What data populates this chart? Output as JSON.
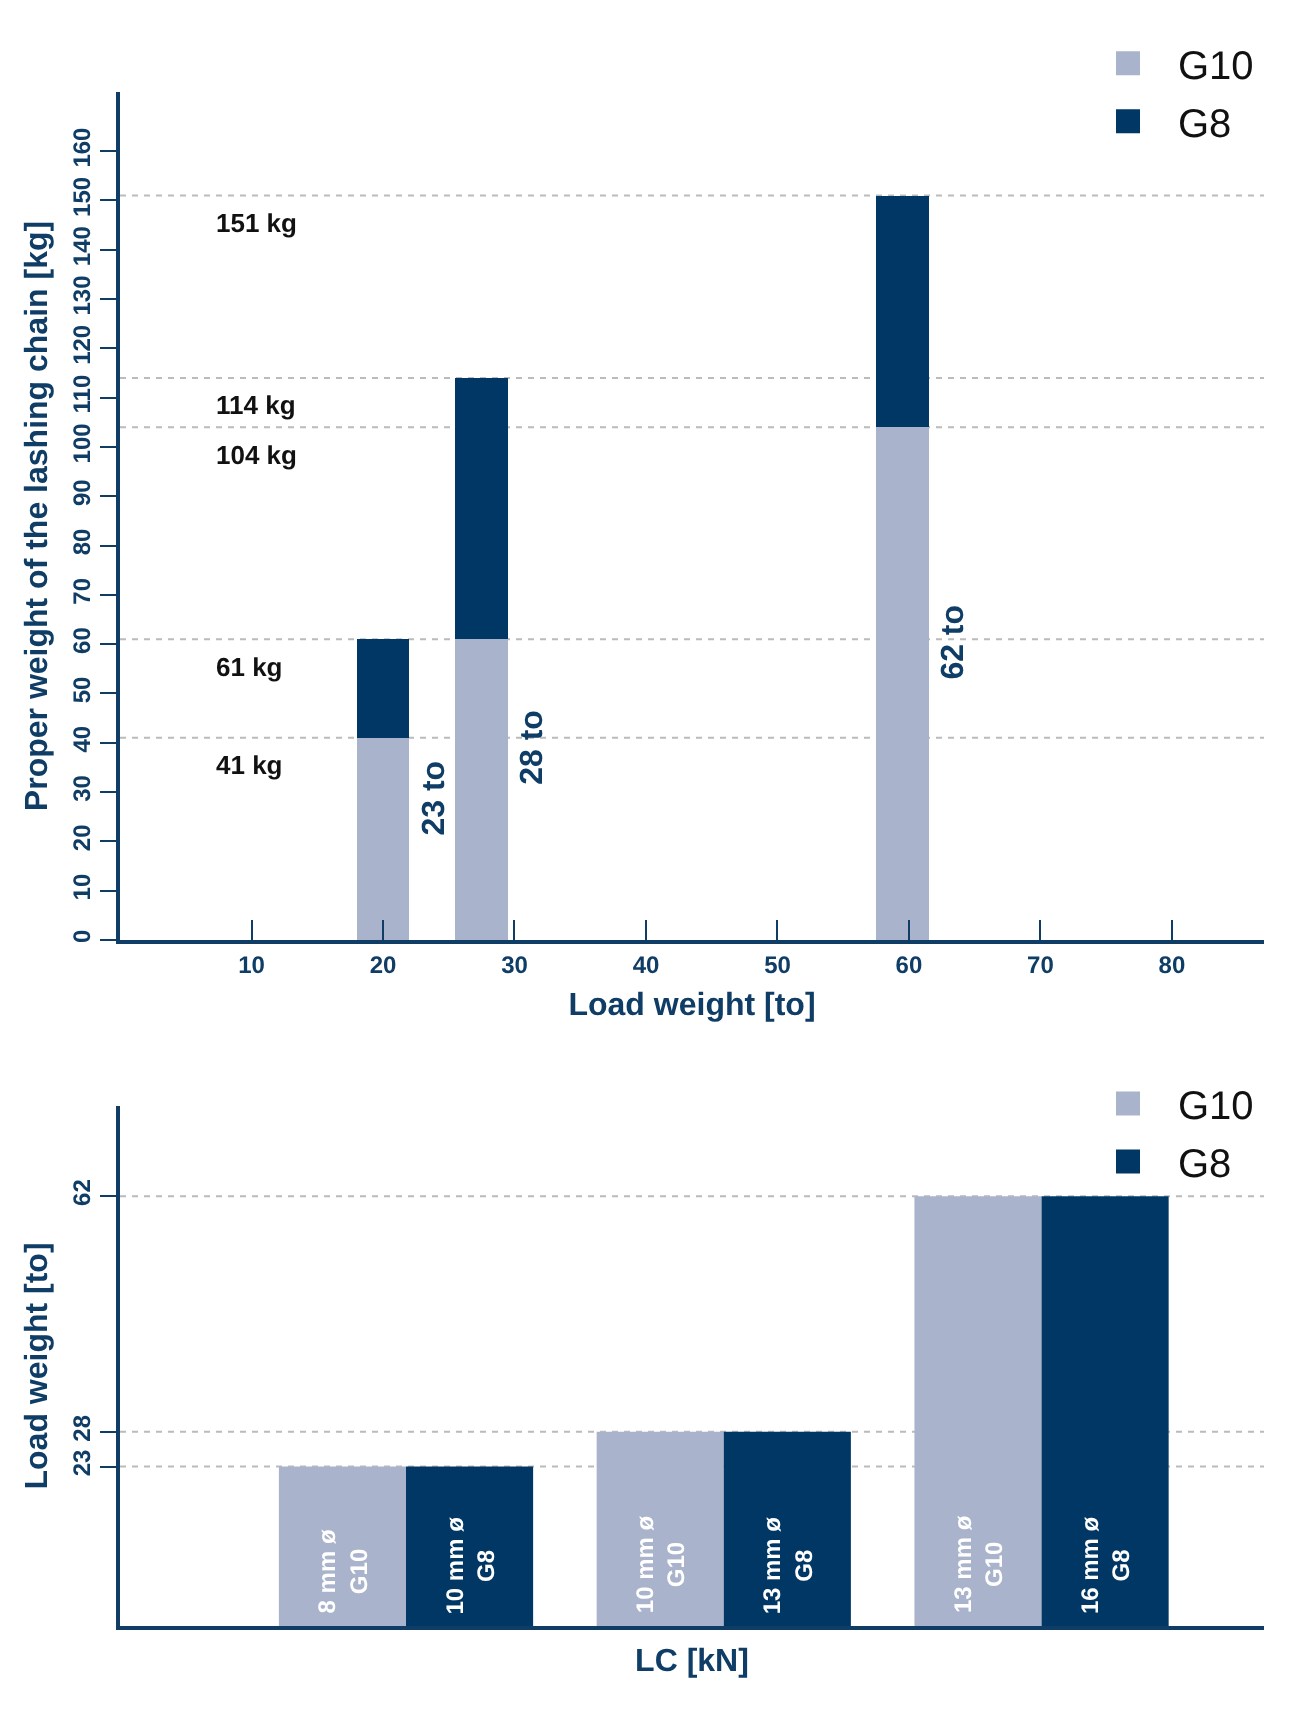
{
  "chart_data": [
    {
      "type": "bar",
      "stacked": true,
      "xlabel": "Load weight [to]",
      "ylabel": "Proper weight of the lashing chain [kg]",
      "x": [
        20,
        27.5,
        59.5
      ],
      "series": [
        {
          "name": "G10",
          "color": "#a9b3cb",
          "values": [
            41,
            61,
            104
          ]
        },
        {
          "name": "G8",
          "color": "#003764",
          "values": [
            20,
            53,
            47
          ]
        }
      ],
      "xlim": [
        0,
        87
      ],
      "xticks": [
        10,
        20,
        30,
        40,
        50,
        60,
        70,
        80
      ],
      "ylim": [
        0,
        172
      ],
      "yticks": [
        0,
        10,
        20,
        30,
        40,
        50,
        60,
        70,
        80,
        90,
        100,
        110,
        120,
        130,
        140,
        150,
        160
      ],
      "ref_lines": [
        {
          "axis": "y",
          "value": 41,
          "label": "41 kg",
          "line_style": "dotted",
          "color": "#bbbbbb"
        },
        {
          "axis": "y",
          "value": 61,
          "label": "61 kg",
          "line_style": "dotted",
          "color": "#bbbbbb"
        },
        {
          "axis": "y",
          "value": 104,
          "label": "104 kg",
          "line_style": "dotted",
          "color": "#bbbbbb"
        },
        {
          "axis": "y",
          "value": 114,
          "label": "114 kg",
          "line_style": "dotted",
          "color": "#bbbbbb"
        },
        {
          "axis": "y",
          "value": 151,
          "label": "151 kg",
          "line_style": "dotted",
          "color": "#bbbbbb"
        }
      ],
      "annotations": [
        "23 to",
        "28 to",
        "62 to"
      ],
      "grid": false,
      "legend": "top right"
    },
    {
      "type": "bar",
      "xlabel": "LC [kN]",
      "ylabel": "Load weight [to]",
      "categories": [
        null,
        null,
        null
      ],
      "series": [
        {
          "name": "G10",
          "color": "#a9b3cb",
          "values": [
            23,
            28,
            62
          ]
        },
        {
          "name": "G8",
          "color": "#003764",
          "values": [
            23,
            28,
            62
          ]
        }
      ],
      "annotations": [
        "8 mm ø\nG10",
        "10 mm ø\nG8",
        "10 mm ø\nG10",
        "13 mm ø\nG8",
        "13 mm ø\nG10",
        "16 mm ø\nG8"
      ],
      "ylim": [
        0,
        75
      ],
      "yticks": [
        23,
        28,
        62
      ],
      "ref_lines": [
        {
          "axis": "y",
          "value": 23,
          "line_style": "dotted",
          "color": "#bbbbbb"
        },
        {
          "axis": "y",
          "value": 28,
          "line_style": "dotted",
          "color": "#bbbbbb"
        },
        {
          "axis": "y",
          "value": 62,
          "line_style": "dotted",
          "color": "#bbbbbb"
        }
      ],
      "grid": false,
      "legend": "top right"
    }
  ]
}
